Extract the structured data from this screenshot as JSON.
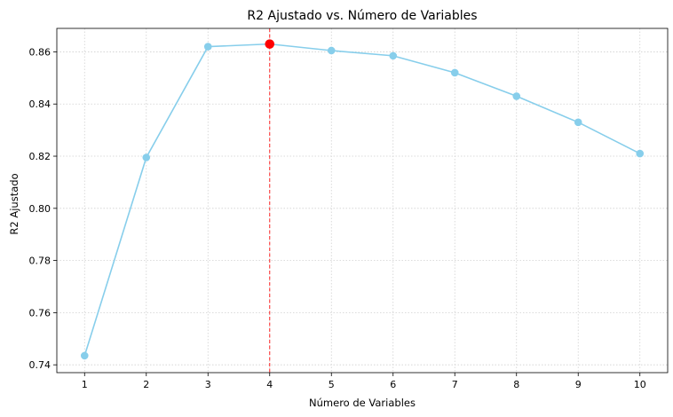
{
  "chart_data": {
    "type": "line",
    "title": "R2 Ajustado vs. Número de Variables",
    "xlabel": "Número de Variables",
    "ylabel": "R2 Ajustado",
    "x": [
      1,
      2,
      3,
      4,
      5,
      6,
      7,
      8,
      9,
      10
    ],
    "series": [
      {
        "values": [
          0.7435,
          0.8195,
          0.862,
          0.863,
          0.8605,
          0.8585,
          0.852,
          0.843,
          0.833,
          0.821
        ],
        "color": "#87ceeb",
        "marker": "circle"
      }
    ],
    "highlight": {
      "x": 4,
      "y": 0.863,
      "color": "#ff0000",
      "vline_color": "#ff0000",
      "vline_style": "dashed"
    },
    "x_ticks": [
      "1",
      "2",
      "3",
      "4",
      "5",
      "6",
      "7",
      "8",
      "9",
      "10"
    ],
    "y_ticks": [
      "0.74",
      "0.76",
      "0.78",
      "0.80",
      "0.82",
      "0.84",
      "0.86"
    ],
    "xlim": [
      0.55,
      10.45
    ],
    "ylim": [
      0.737,
      0.869
    ],
    "grid": true,
    "grid_style": "dotted"
  }
}
